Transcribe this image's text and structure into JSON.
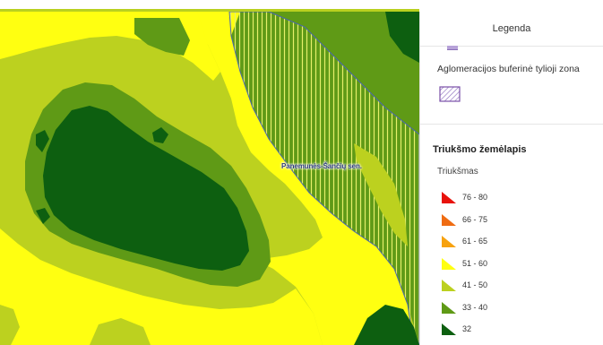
{
  "map": {
    "label": "Panemunės-Šančių sen."
  },
  "legend": {
    "title": "Legenda",
    "buffer_zone_label": "Aglomeracijos buferinė tylioji zona",
    "buffer_zone_colors": {
      "stroke": "#7a4fa8",
      "hatch": "#9a7cc4"
    },
    "noise_map_title": "Triukšmo žemėlapis",
    "noise_subtitle": "Triukšmas",
    "classes": [
      {
        "label": "76 - 80",
        "color": "#e8120b"
      },
      {
        "label": "66 - 75",
        "color": "#ef6c12"
      },
      {
        "label": "61 - 65",
        "color": "#f7a20f"
      },
      {
        "label": "51 - 60",
        "color": "#ffff11"
      },
      {
        "label": "41 - 50",
        "color": "#bcd11f"
      },
      {
        "label": "33 - 40",
        "color": "#5f9a16"
      },
      {
        "label": "32",
        "color": "#0d5f10"
      }
    ]
  },
  "colors": {
    "zone_32": "#0d5f10",
    "zone_33_40": "#5f9a16",
    "zone_41_50": "#bcd11f",
    "zone_51_60": "#ffff11",
    "buffer_hatch": "#d9dd5c"
  }
}
